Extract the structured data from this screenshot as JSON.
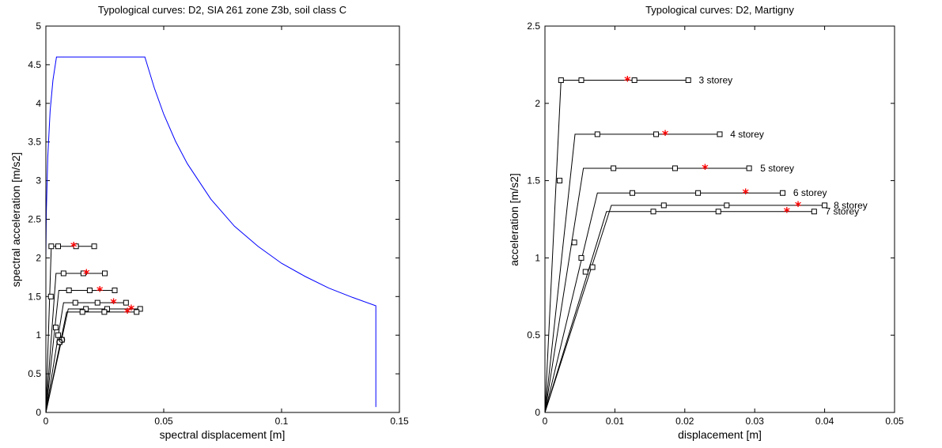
{
  "chart_data": [
    {
      "type": "line",
      "title": "Typological curves: D2, SIA 261 zone Z3b, soil class C",
      "xlabel": "spectral displacement [m]",
      "ylabel": "spectral acceleration [m/s2]",
      "xlim": [
        0,
        0.15
      ],
      "ylim": [
        0,
        5
      ],
      "xticks": [
        0,
        0.05,
        0.1,
        0.15
      ],
      "xtick_labels": [
        "0",
        "0.05",
        "0.1",
        "0.15"
      ],
      "yticks": [
        0,
        0.5,
        1,
        1.5,
        2,
        2.5,
        3,
        3.5,
        4,
        4.5,
        5
      ],
      "ytick_labels": [
        "0",
        "0.5",
        "1",
        "1.5",
        "2",
        "2.5",
        "3",
        "3.5",
        "4",
        "4.5",
        "5"
      ],
      "grid": false,
      "demand_spectrum": {
        "color": "#0000ff",
        "x": [
          0,
          0.0002,
          0.0008,
          0.0018,
          0.003,
          0.0045,
          0.042,
          0.046,
          0.05,
          0.055,
          0.06,
          0.07,
          0.08,
          0.09,
          0.1,
          0.11,
          0.12,
          0.13,
          0.14,
          0.14
        ],
        "y": [
          2.0,
          2.6,
          3.3,
          3.9,
          4.3,
          4.6,
          4.6,
          4.2,
          3.86,
          3.51,
          3.22,
          2.76,
          2.41,
          2.15,
          1.93,
          1.76,
          1.61,
          1.49,
          1.38,
          0.07
        ]
      },
      "capacity_curves": [
        {
          "points": [
            [
              0,
              0
            ],
            [
              0.0023,
              2.15
            ],
            [
              0.0205,
              2.15
            ]
          ],
          "markers": [
            [
              0.0023,
              2.15
            ],
            [
              0.0052,
              2.15
            ],
            [
              0.0128,
              2.15
            ],
            [
              0.0205,
              2.15
            ]
          ],
          "performance": [
            0.0118,
            2.15
          ]
        },
        {
          "points": [
            [
              0,
              0
            ],
            [
              0.0043,
              1.8
            ],
            [
              0.025,
              1.8
            ]
          ],
          "markers": [
            [
              0.0021,
              1.5
            ],
            [
              0.0075,
              1.8
            ],
            [
              0.0159,
              1.8
            ],
            [
              0.025,
              1.8
            ]
          ],
          "performance": [
            0.0172,
            1.8
          ]
        },
        {
          "points": [
            [
              0,
              0
            ],
            [
              0.0055,
              1.58
            ],
            [
              0.0292,
              1.58
            ]
          ],
          "markers": [
            [
              0.0042,
              1.1
            ],
            [
              0.0098,
              1.58
            ],
            [
              0.0186,
              1.58
            ],
            [
              0.0292,
              1.58
            ]
          ],
          "performance": [
            0.0229,
            1.58
          ]
        },
        {
          "points": [
            [
              0,
              0
            ],
            [
              0.0075,
              1.42
            ],
            [
              0.034,
              1.42
            ]
          ],
          "markers": [
            [
              0.0052,
              1.0
            ],
            [
              0.0125,
              1.42
            ],
            [
              0.0219,
              1.42
            ],
            [
              0.034,
              1.42
            ]
          ],
          "performance": [
            0.0287,
            1.42
          ]
        },
        {
          "points": [
            [
              0,
              0
            ],
            [
              0.0095,
              1.34
            ],
            [
              0.04,
              1.34
            ]
          ],
          "markers": [
            [
              0.0068,
              0.94
            ],
            [
              0.017,
              1.34
            ],
            [
              0.026,
              1.34
            ],
            [
              0.04,
              1.34
            ]
          ],
          "performance": [
            0.0362,
            1.34
          ]
        },
        {
          "points": [
            [
              0,
              0
            ],
            [
              0.0088,
              1.3
            ],
            [
              0.0385,
              1.3
            ]
          ],
          "markers": [
            [
              0.0058,
              0.91
            ],
            [
              0.0155,
              1.3
            ],
            [
              0.0248,
              1.3
            ],
            [
              0.0385,
              1.3
            ]
          ],
          "performance": [
            0.0346,
            1.3
          ]
        }
      ],
      "circle_markers": [
        [
          0.0058,
          0.91
        ],
        [
          0.0068,
          0.94
        ]
      ]
    },
    {
      "type": "line",
      "title": "Typological curves: D2, Martigny",
      "xlabel": "displacement [m]",
      "ylabel": "acceleration [m/s2]",
      "xlim": [
        0,
        0.05
      ],
      "ylim": [
        0,
        2.5
      ],
      "xticks": [
        0,
        0.01,
        0.02,
        0.03,
        0.04,
        0.05
      ],
      "xtick_labels": [
        "0",
        "0.01",
        "0.02",
        "0.03",
        "0.04",
        "0.05"
      ],
      "yticks": [
        0,
        0.5,
        1,
        1.5,
        2,
        2.5
      ],
      "ytick_labels": [
        "0",
        "0.5",
        "1",
        "1.5",
        "2",
        "2.5"
      ],
      "grid": false,
      "capacity_curves": [
        {
          "label": "3 storey",
          "label_xy": [
            0.022,
            2.15
          ],
          "points": [
            [
              0,
              0
            ],
            [
              0.0023,
              2.15
            ],
            [
              0.0205,
              2.15
            ]
          ],
          "markers": [
            [
              0.0023,
              2.15
            ],
            [
              0.0052,
              2.15
            ],
            [
              0.0128,
              2.15
            ],
            [
              0.0205,
              2.15
            ]
          ],
          "performance": [
            0.0118,
            2.15
          ]
        },
        {
          "label": "4 storey",
          "label_xy": [
            0.0265,
            1.8
          ],
          "points": [
            [
              0,
              0
            ],
            [
              0.0043,
              1.8
            ],
            [
              0.025,
              1.8
            ]
          ],
          "markers": [
            [
              0.0021,
              1.5
            ],
            [
              0.0075,
              1.8
            ],
            [
              0.0159,
              1.8
            ],
            [
              0.025,
              1.8
            ]
          ],
          "performance": [
            0.0172,
            1.8
          ]
        },
        {
          "label": "5 storey",
          "label_xy": [
            0.0308,
            1.58
          ],
          "points": [
            [
              0,
              0
            ],
            [
              0.0055,
              1.58
            ],
            [
              0.0292,
              1.58
            ]
          ],
          "markers": [
            [
              0.0042,
              1.1
            ],
            [
              0.0098,
              1.58
            ],
            [
              0.0186,
              1.58
            ],
            [
              0.0292,
              1.58
            ]
          ],
          "performance": [
            0.0229,
            1.58
          ]
        },
        {
          "label": "6 storey",
          "label_xy": [
            0.0355,
            1.42
          ],
          "points": [
            [
              0,
              0
            ],
            [
              0.0075,
              1.42
            ],
            [
              0.034,
              1.42
            ]
          ],
          "markers": [
            [
              0.0052,
              1.0
            ],
            [
              0.0125,
              1.42
            ],
            [
              0.0219,
              1.42
            ],
            [
              0.034,
              1.42
            ]
          ],
          "performance": [
            0.0287,
            1.42
          ]
        },
        {
          "label": "8 storey",
          "label_xy": [
            0.0413,
            1.34
          ],
          "points": [
            [
              0,
              0
            ],
            [
              0.0095,
              1.34
            ],
            [
              0.04,
              1.34
            ]
          ],
          "markers": [
            [
              0.0068,
              0.94
            ],
            [
              0.017,
              1.34
            ],
            [
              0.026,
              1.34
            ],
            [
              0.04,
              1.34
            ]
          ],
          "performance": [
            0.0362,
            1.34
          ]
        },
        {
          "label": "7 storey",
          "label_xy": [
            0.0401,
            1.3
          ],
          "points": [
            [
              0,
              0
            ],
            [
              0.0088,
              1.3
            ],
            [
              0.0385,
              1.3
            ]
          ],
          "markers": [
            [
              0.0058,
              0.91
            ],
            [
              0.0155,
              1.3
            ],
            [
              0.0248,
              1.3
            ],
            [
              0.0385,
              1.3
            ]
          ],
          "performance": [
            0.0346,
            1.3
          ]
        }
      ]
    }
  ]
}
